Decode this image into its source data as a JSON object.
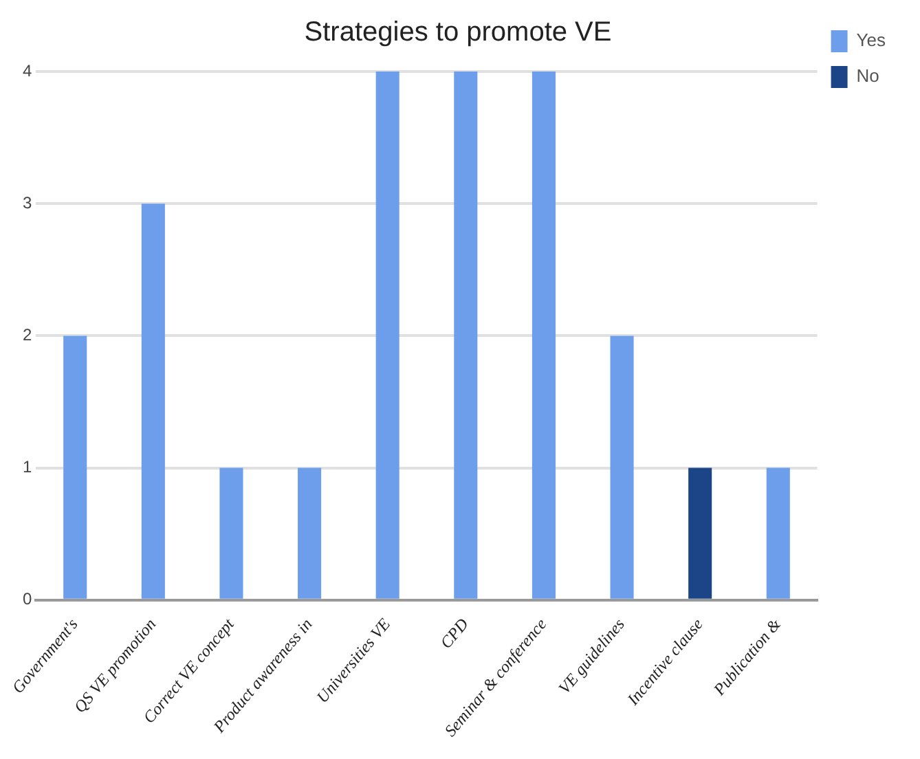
{
  "chart_data": {
    "type": "bar",
    "title": "Strategies to promote VE",
    "categories": [
      "Government's",
      "QS VE promotion",
      "Correct VE concept",
      "Product awareness in",
      "Universities VE",
      "CPD",
      "Seminar & conference",
      "VE guidelines",
      "Incentive clause",
      "Publication &"
    ],
    "series": [
      {
        "name": "Yes",
        "color": "#6d9eeb",
        "values": [
          2,
          3,
          1,
          1,
          4,
          4,
          4,
          2,
          null,
          1
        ]
      },
      {
        "name": "No",
        "color": "#1c4587",
        "values": [
          null,
          null,
          null,
          null,
          null,
          null,
          null,
          null,
          1,
          null
        ]
      }
    ],
    "ylim": [
      0,
      4
    ],
    "yticks": [
      0,
      1,
      2,
      3,
      4
    ],
    "grid": "y",
    "legend": "top right"
  }
}
